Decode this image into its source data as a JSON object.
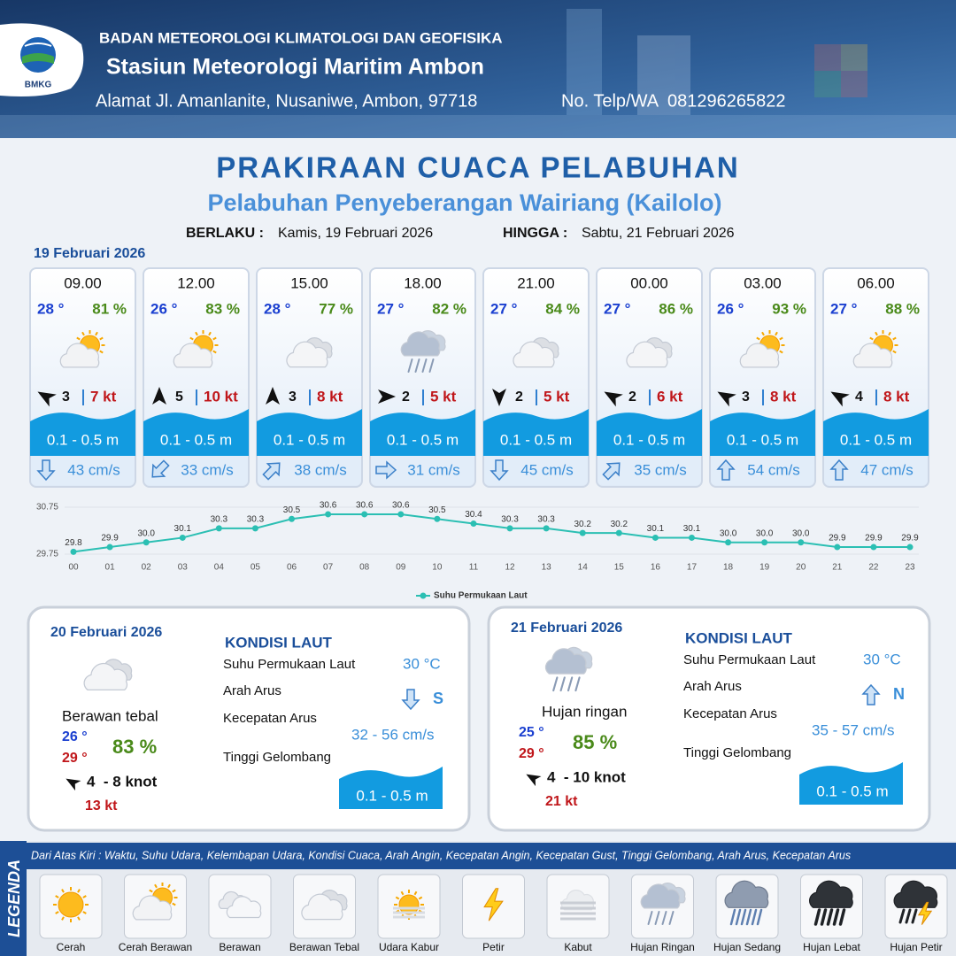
{
  "header": {
    "logo_text": "BMKG",
    "agency": "BADAN METEOROLOGI KLIMATOLOGI DAN GEOFISIKA",
    "station": "Stasiun Meteorologi Maritim Ambon",
    "address": "Alamat Jl. Amanlanite, Nusaniwe, Ambon, 97718",
    "phone": "No. Telp/WA  081296265822"
  },
  "title": "PRAKIRAAN CUACA PELABUHAN",
  "subtitle": "Pelabuhan Penyeberangan Wairiang (Kailolo)",
  "validity": {
    "from_label": "BERLAKU :",
    "from": "Kamis, 19 Februari 2026",
    "to_label": "HINGGA :",
    "to": "Sabtu, 21 Februari 2026"
  },
  "today": {
    "date": "19 Februari 2026",
    "slots": [
      {
        "time": "09.00",
        "temp": "28 °",
        "humidity": "81 %",
        "wind_speed": "3",
        "gust": "7 kt",
        "wave": "0.1 - 0.5 m",
        "current_speed": "43 cm/s"
      },
      {
        "time": "12.00",
        "temp": "26 °",
        "humidity": "83 %",
        "wind_speed": "5",
        "gust": "10 kt",
        "wave": "0.1 - 0.5 m",
        "current_speed": "33 cm/s"
      },
      {
        "time": "15.00",
        "temp": "28 °",
        "humidity": "77 %",
        "wind_speed": "3",
        "gust": "8 kt",
        "wave": "0.1 - 0.5 m",
        "current_speed": "38 cm/s"
      },
      {
        "time": "18.00",
        "temp": "27 °",
        "humidity": "82 %",
        "wind_speed": "2",
        "gust": "5 kt",
        "wave": "0.1 - 0.5 m",
        "current_speed": "31 cm/s"
      },
      {
        "time": "21.00",
        "temp": "27 °",
        "humidity": "84 %",
        "wind_speed": "2",
        "gust": "5 kt",
        "wave": "0.1 - 0.5 m",
        "current_speed": "45 cm/s"
      },
      {
        "time": "00.00",
        "temp": "27 °",
        "humidity": "86 %",
        "wind_speed": "2",
        "gust": "6 kt",
        "wave": "0.1 - 0.5 m",
        "current_speed": "35 cm/s"
      },
      {
        "time": "03.00",
        "temp": "26 °",
        "humidity": "93 %",
        "wind_speed": "3",
        "gust": "8 kt",
        "wave": "0.1 - 0.5 m",
        "current_speed": "54 cm/s"
      },
      {
        "time": "06.00",
        "temp": "27 °",
        "humidity": "88 %",
        "wind_speed": "4",
        "gust": "8 kt",
        "wave": "0.1 - 0.5 m",
        "current_speed": "47 cm/s"
      }
    ]
  },
  "chart_data": {
    "type": "line",
    "categories": [
      "00",
      "01",
      "02",
      "03",
      "04",
      "05",
      "06",
      "07",
      "08",
      "09",
      "10",
      "11",
      "12",
      "13",
      "14",
      "15",
      "16",
      "17",
      "18",
      "19",
      "20",
      "21",
      "22",
      "23"
    ],
    "series": [
      {
        "name": "Suhu Permukaan Laut",
        "color": "#2bbfb3",
        "values": [
          29.8,
          29.9,
          30.0,
          30.1,
          30.3,
          30.3,
          30.5,
          30.6,
          30.6,
          30.6,
          30.5,
          30.4,
          30.3,
          30.3,
          30.2,
          30.2,
          30.1,
          30.1,
          30.0,
          30.0,
          30.0,
          29.9,
          29.9,
          29.9
        ],
        "value_labels": [
          "29.8",
          "29.9",
          "30.0",
          "30.1",
          "30.3",
          "30.3",
          "30.5",
          "30.6",
          "30.6",
          "30.6",
          "30.5",
          "30.4",
          "30.3",
          "30.3",
          "30.2",
          "30.2",
          "30.1",
          "30.1",
          "30.0",
          "30.0",
          "30.0",
          "29.9",
          "29.9",
          "29.9"
        ]
      }
    ],
    "ylim": [
      29.75,
      30.75
    ],
    "yticks": [
      29.75,
      30.75
    ],
    "grid": true,
    "legend": "bottom"
  },
  "days": [
    {
      "date": "20 Februari 2026",
      "condition": "Berawan tebal",
      "temp_min": "26 °",
      "temp_max": "29 °",
      "humidity": "83 %",
      "wind": "4  - 8 knot",
      "gust": "13 kt",
      "sea": {
        "title": "KONDISI LAUT",
        "labels": [
          "Suhu Permukaan Laut",
          "Arah Arus",
          "Kecepatan Arus",
          "Tinggi Gelombang"
        ],
        "sst": "30 °C",
        "current_dir": "S",
        "current_speed": "32 - 56 cm/s",
        "wave": "0.1 - 0.5 m"
      }
    },
    {
      "date": "21 Februari 2026",
      "condition": "Hujan ringan",
      "temp_min": "25 °",
      "temp_max": "29 °",
      "humidity": "85 %",
      "wind": "4  - 10 knot",
      "gust": "21 kt",
      "sea": {
        "title": "KONDISI LAUT",
        "labels": [
          "Suhu Permukaan Laut",
          "Arah Arus",
          "Kecepatan Arus",
          "Tinggi Gelombang"
        ],
        "sst": "30 °C",
        "current_dir": "N",
        "current_speed": "35 - 57 cm/s",
        "wave": "0.1 - 0.5 m"
      }
    }
  ],
  "legend": {
    "title": "LEGENDA",
    "description": "Dari Atas Kiri : Waktu, Suhu Udara, Kelembapan Udara, Kondisi Cuaca, Arah Angin, Kecepatan Angin, Kecepatan Gust, Tinggi Gelombang, Arah Arus, Kecepatan Arus",
    "items": [
      "Cerah",
      "Cerah Berawan",
      "Berawan",
      "Berawan Tebal",
      "Udara Kabur",
      "Petir",
      "Kabut",
      "Hujan Ringan",
      "Hujan Sedang",
      "Hujan Lebat",
      "Hujan Petir"
    ]
  }
}
